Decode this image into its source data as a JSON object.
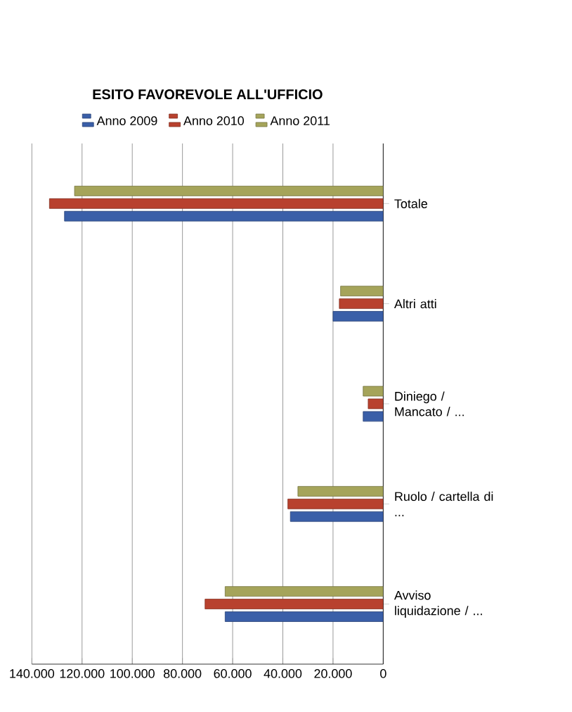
{
  "chart_data": {
    "type": "bar",
    "orientation": "horizontal",
    "title": "ESITO FAVOREVOLE ALL'UFFICIO",
    "categories": [
      "Totale",
      "Altri atti",
      "Diniego / Mancato / ...",
      "Ruolo / cartella di ...",
      "Avviso liquidazione / ..."
    ],
    "series": [
      {
        "name": "Anno 2009",
        "color": "#3a5fa8",
        "values": [
          127000,
          20000,
          8000,
          37000,
          63000
        ]
      },
      {
        "name": "Anno 2010",
        "color": "#b8412e",
        "values": [
          133000,
          17500,
          6000,
          38000,
          71000
        ]
      },
      {
        "name": "Anno 2011",
        "color": "#a5a45a",
        "values": [
          123000,
          17000,
          8000,
          34000,
          63000
        ]
      }
    ],
    "xlim": [
      140000,
      0
    ],
    "xticks": [
      {
        "value": 140000,
        "label": "140.000"
      },
      {
        "value": 120000,
        "label": "120.000"
      },
      {
        "value": 100000,
        "label": "100.000"
      },
      {
        "value": 80000,
        "label": "80.000"
      },
      {
        "value": 60000,
        "label": "60.000"
      },
      {
        "value": 40000,
        "label": "40.000"
      },
      {
        "value": 20000,
        "label": "20.000"
      },
      0
    ],
    "grid": "x",
    "legend": "top"
  }
}
